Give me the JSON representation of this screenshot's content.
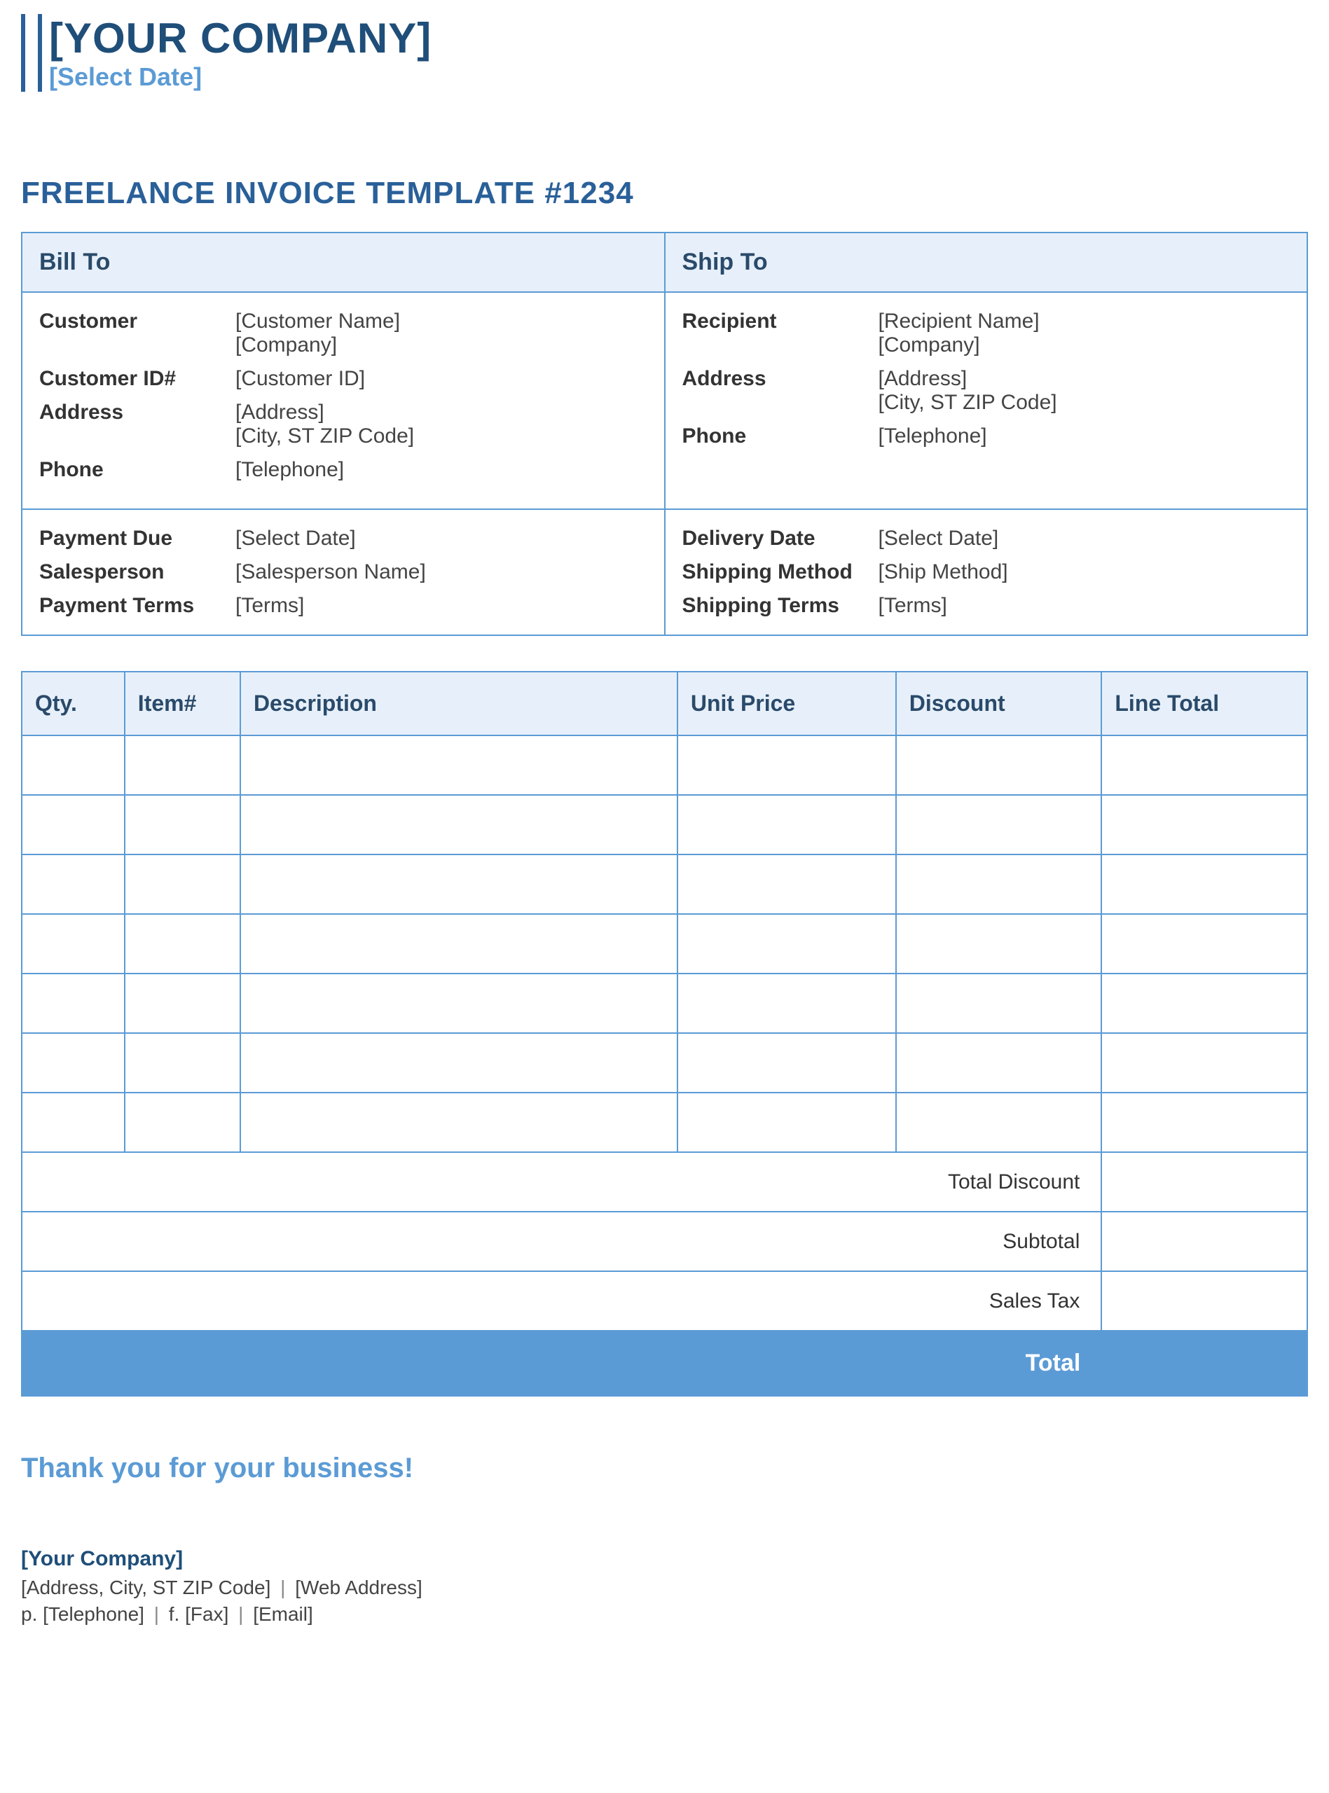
{
  "header": {
    "company": "[YOUR COMPANY]",
    "date": "[Select Date]"
  },
  "title": "FREELANCE INVOICE TEMPLATE #1234",
  "billto": {
    "heading": "Bill To",
    "customer_label": "Customer",
    "customer_name": "[Customer Name]",
    "customer_company": "[Company]",
    "customer_id_label": "Customer ID#",
    "customer_id": "[Customer ID]",
    "address_label": "Address",
    "address1": "[Address]",
    "address2": "[City, ST  ZIP Code]",
    "phone_label": "Phone",
    "phone": "[Telephone]"
  },
  "shipto": {
    "heading": "Ship To",
    "recipient_label": "Recipient",
    "recipient_name": "[Recipient Name]",
    "recipient_company": "[Company]",
    "address_label": "Address",
    "address1": "[Address]",
    "address2": "[City, ST  ZIP Code]",
    "phone_label": "Phone",
    "phone": "[Telephone]"
  },
  "payment": {
    "due_label": "Payment Due",
    "due": "[Select Date]",
    "salesperson_label": "Salesperson",
    "salesperson": "[Salesperson Name]",
    "terms_label": "Payment Terms",
    "terms": "[Terms]"
  },
  "delivery": {
    "date_label": "Delivery Date",
    "date": "[Select Date]",
    "method_label": "Shipping Method",
    "method": "[Ship Method]",
    "terms_label": "Shipping Terms",
    "terms": "[Terms]"
  },
  "items": {
    "columns": {
      "qty": "Qty.",
      "item": "Item#",
      "desc": "Description",
      "price": "Unit Price",
      "discount": "Discount",
      "total": "Line Total"
    },
    "row_count": 7
  },
  "summary": {
    "total_discount": "Total Discount",
    "subtotal": "Subtotal",
    "sales_tax": "Sales Tax",
    "total": "Total"
  },
  "thankyou": "Thank you for your business!",
  "footer": {
    "company": "[Your Company]",
    "address": "[Address, City, ST  ZIP Code]",
    "web": "[Web Address]",
    "phone_prefix": "p.",
    "phone": "[Telephone]",
    "fax_prefix": "f.",
    "fax": "[Fax]",
    "email": "[Email]"
  },
  "colors": {
    "accent_dark": "#1f4e79",
    "accent_mid": "#2a6099",
    "accent_light": "#5b9bd5",
    "header_bg": "#e7f0fa"
  }
}
